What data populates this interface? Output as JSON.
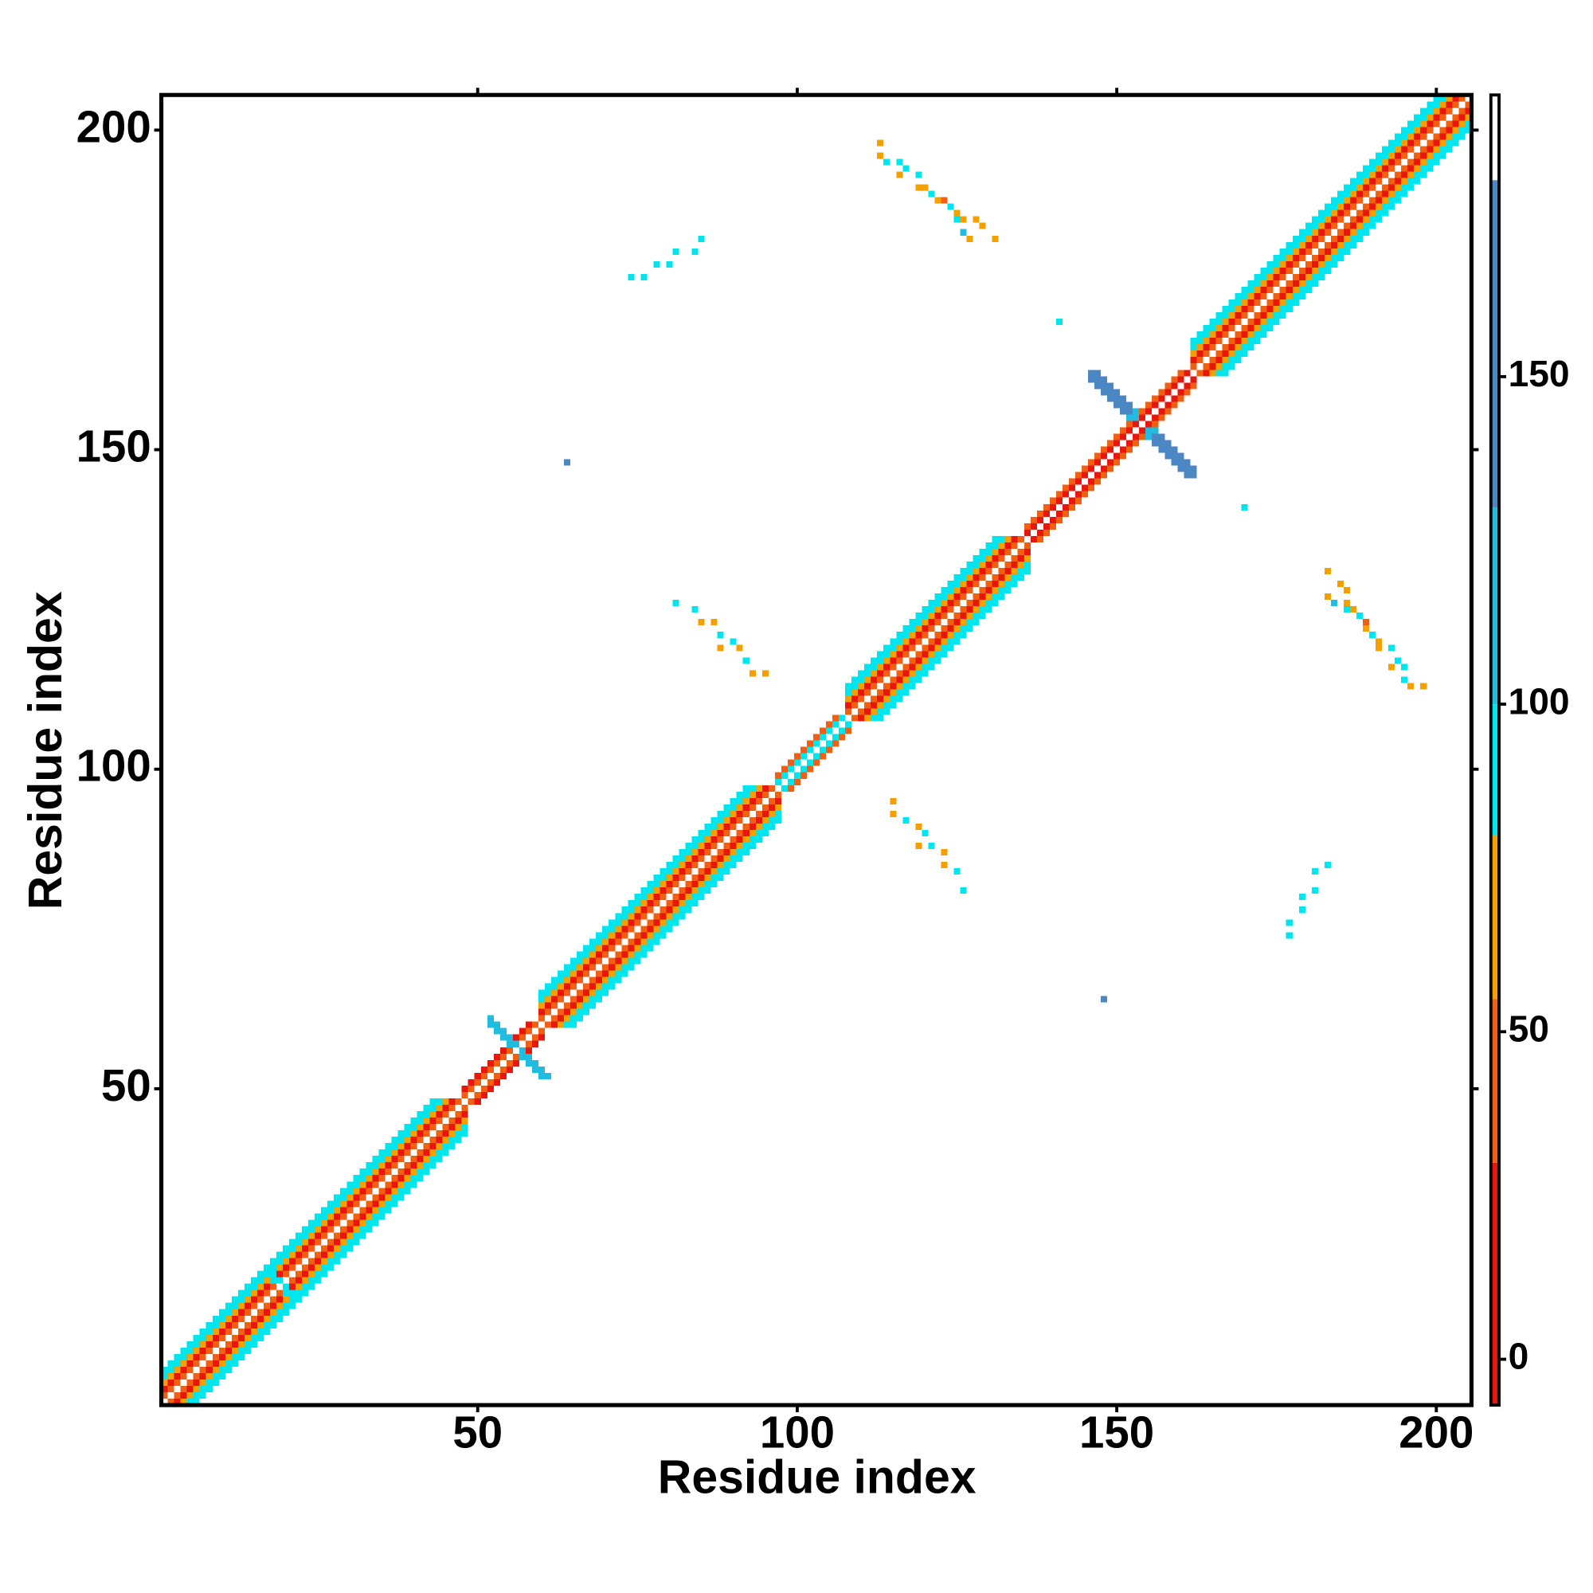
{
  "chart_data": {
    "type": "heatmap",
    "xlabel": "Residue index",
    "ylabel": "Residue index",
    "xlim": [
      0.5,
      205.5
    ],
    "ylim": [
      0.5,
      205.5
    ],
    "xticks": [
      50,
      100,
      150,
      200
    ],
    "yticks": [
      50,
      100,
      150,
      200
    ],
    "clim": [
      -7,
      193
    ],
    "cticks": [
      0,
      50,
      100,
      150
    ],
    "colorscale": [
      {
        "from": -7,
        "to": 30,
        "color": "#e8160c"
      },
      {
        "from": 30,
        "to": 55,
        "color": "#f06010"
      },
      {
        "from": 55,
        "to": 80,
        "color": "#f4a000"
      },
      {
        "from": 80,
        "to": 100,
        "color": "#00e6ee"
      },
      {
        "from": 100,
        "to": 130,
        "color": "#20bde0"
      },
      {
        "from": 130,
        "to": 180,
        "color": "#4b87c2"
      },
      {
        "from": 180,
        "to": 193,
        "color": "#ffffff"
      }
    ],
    "symmetric": true,
    "diagonal": [
      {
        "from": 1,
        "to": 48,
        "values": [
          45,
          15,
          65,
          90,
          90
        ]
      },
      {
        "from": 48,
        "to": 60,
        "values": [
          45,
          15
        ]
      },
      {
        "from": 60,
        "to": 97,
        "values": [
          45,
          15,
          65,
          90,
          90
        ]
      },
      {
        "from": 97,
        "to": 108,
        "values": [
          90,
          45
        ]
      },
      {
        "from": 108,
        "to": 136,
        "values": [
          45,
          15,
          65,
          90,
          90
        ]
      },
      {
        "from": 136,
        "to": 162,
        "values": [
          15,
          45
        ]
      },
      {
        "from": 162,
        "to": 205,
        "values": [
          45,
          15,
          65,
          90,
          90
        ]
      }
    ],
    "cells": [
      [
        113,
        198,
        65
      ],
      [
        113,
        196,
        65
      ],
      [
        114,
        195,
        90
      ],
      [
        116,
        195,
        90
      ],
      [
        116,
        193,
        65
      ],
      [
        117,
        194,
        90
      ],
      [
        119,
        193,
        90
      ],
      [
        119,
        191,
        65
      ],
      [
        120,
        191,
        65
      ],
      [
        121,
        190,
        90
      ],
      [
        122,
        189,
        65
      ],
      [
        123,
        189,
        45
      ],
      [
        124,
        188,
        90
      ],
      [
        125,
        187,
        65
      ],
      [
        125,
        186,
        90
      ],
      [
        126,
        186,
        65
      ],
      [
        128,
        186,
        65
      ],
      [
        126,
        184,
        115
      ],
      [
        129,
        185,
        65
      ],
      [
        127,
        183,
        65
      ],
      [
        131,
        183,
        65
      ],
      [
        74,
        177,
        90
      ],
      [
        76,
        177,
        90
      ],
      [
        78,
        179,
        90
      ],
      [
        80,
        179,
        90
      ],
      [
        81,
        181,
        90
      ],
      [
        84,
        181,
        90
      ],
      [
        85,
        183,
        90
      ],
      [
        81,
        126,
        90
      ],
      [
        84,
        125,
        90
      ],
      [
        85,
        123,
        65
      ],
      [
        87,
        123,
        65
      ],
      [
        88,
        121,
        90
      ],
      [
        90,
        120,
        90
      ],
      [
        88,
        119,
        65
      ],
      [
        91,
        119,
        65
      ],
      [
        92,
        117,
        90
      ],
      [
        93,
        115,
        65
      ],
      [
        95,
        115,
        65
      ],
      [
        64,
        148,
        155
      ],
      [
        141,
        170,
        90
      ],
      [
        146,
        162,
        155
      ],
      [
        147,
        161,
        155
      ],
      [
        148,
        160,
        155
      ],
      [
        149,
        159,
        155
      ],
      [
        150,
        158,
        155
      ],
      [
        151,
        157,
        155
      ],
      [
        152,
        156,
        155
      ],
      [
        153,
        155,
        115
      ],
      [
        146,
        161,
        155
      ],
      [
        147,
        160,
        155
      ],
      [
        148,
        159,
        155
      ],
      [
        149,
        158,
        155
      ],
      [
        150,
        157,
        155
      ],
      [
        151,
        156,
        155
      ],
      [
        152,
        155,
        115
      ],
      [
        147,
        162,
        155
      ],
      [
        148,
        161,
        155
      ],
      [
        149,
        160,
        155
      ],
      [
        150,
        159,
        155
      ],
      [
        151,
        158,
        155
      ],
      [
        152,
        157,
        155
      ],
      [
        153,
        156,
        115
      ],
      [
        52,
        61,
        115
      ],
      [
        53,
        60,
        115
      ],
      [
        54,
        59,
        115
      ],
      [
        55,
        58,
        115
      ],
      [
        56,
        57,
        115
      ],
      [
        52,
        60,
        115
      ],
      [
        53,
        59,
        115
      ],
      [
        54,
        58,
        115
      ],
      [
        55,
        57,
        115
      ],
      [
        17,
        22,
        90
      ],
      [
        18,
        21,
        90
      ],
      [
        19,
        20,
        90
      ],
      [
        17,
        21,
        90
      ],
      [
        18,
        20,
        90
      ]
    ]
  }
}
